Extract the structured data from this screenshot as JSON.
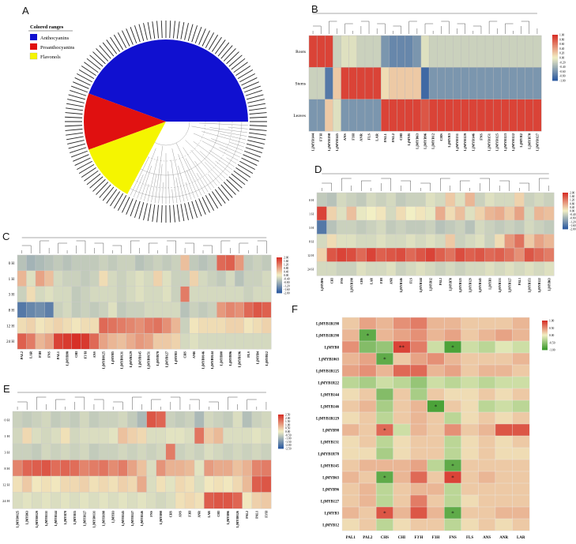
{
  "figure": {
    "panels": [
      "A",
      "B",
      "C",
      "D",
      "E",
      "F"
    ]
  },
  "panel_a": {
    "legend_title": "Colored ranges",
    "legend": [
      {
        "label": "Anthocyanins",
        "color": "#1010d0"
      },
      {
        "label": "Proanthocyanins",
        "color": "#e01010"
      },
      {
        "label": "Flavonols",
        "color": "#f5f500"
      }
    ]
  },
  "palette": {
    "heat_high": "#d73027",
    "heat_mid": "#f2efc4",
    "heat_low": "#2c5aa0",
    "corr_high": "#d73027",
    "corr_mid": "#f2efc4",
    "corr_low": "#3a9a2a"
  },
  "chart_data": [
    {
      "panel": "B",
      "type": "heatmap",
      "rows": [
        "Roots",
        "Stems",
        "Leaves"
      ],
      "columns": [
        "LjMYB144",
        "F3'H",
        "LjMYB198",
        "LjMYB145",
        "ANS",
        "F3H",
        "ANR",
        "FLS",
        "LAR",
        "PAL1",
        "PAL2",
        "CHI",
        "LjMYB",
        "LjMYB63",
        "LjMYB96",
        "LjMYB12",
        "CHS",
        "LjMYB3",
        "LjMYB131",
        "LjMYB129",
        "LjMYB146",
        "FNS",
        "LjMYB151",
        "LjMYB125",
        "LjMYB123",
        "LjMYB122",
        "LjMYB2",
        "LjMYB78",
        "LjMYB127"
      ],
      "colorbar": [
        "1.00",
        "0.80",
        "0.60",
        "0.40",
        "0.20",
        "0.00",
        "-0.20",
        "-0.40",
        "-0.60",
        "-0.80",
        "-1.00"
      ],
      "values": [
        [
          0.9,
          0.9,
          0.9,
          -0.2,
          -0.1,
          -0.1,
          -0.2,
          -0.2,
          -0.2,
          -0.6,
          -0.7,
          -0.7,
          -0.7,
          -0.6,
          -0.1,
          -0.2,
          -0.2,
          -0.2,
          -0.2,
          -0.2,
          -0.2,
          -0.2,
          -0.2,
          -0.2,
          -0.2,
          -0.2,
          -0.2,
          -0.2,
          -0.2
        ],
        [
          -0.2,
          -0.2,
          -0.8,
          0.2,
          0.9,
          0.9,
          0.9,
          0.9,
          0.9,
          0.1,
          0.2,
          0.2,
          0.2,
          0.2,
          -0.9,
          -0.6,
          -0.6,
          -0.6,
          -0.6,
          -0.6,
          -0.6,
          -0.6,
          -0.6,
          -0.6,
          -0.6,
          -0.6,
          -0.6,
          -0.6,
          -0.6
        ],
        [
          -0.6,
          -0.6,
          0.2,
          -0.1,
          -0.6,
          -0.6,
          -0.6,
          -0.6,
          -0.6,
          0.9,
          0.9,
          0.9,
          0.9,
          0.9,
          0.8,
          0.9,
          0.9,
          0.9,
          0.9,
          0.9,
          0.9,
          0.9,
          0.9,
          0.9,
          0.9,
          0.9,
          0.9,
          0.9,
          0.9
        ]
      ]
    },
    {
      "panel": "C",
      "type": "heatmap",
      "rows": [
        "0 H",
        "1 H",
        "3 H",
        "8 H",
        "12 H",
        "24 H"
      ],
      "columns": [
        "PAL2",
        "LAR",
        "F3H",
        "FNS",
        "PAL1",
        "LjMYB98",
        "CHI",
        "F3'H",
        "ANS",
        "LjMYB0125",
        "LjMYB5",
        "LjMYB0131",
        "LjMYB129",
        "LjMYB145",
        "LjMYB0151",
        "LjMYB78",
        "LjMYB127",
        "LjMYB3",
        "CHS",
        "ANR",
        "LjMYB0146",
        "LjMYB0144",
        "LjMYB00",
        "LjMYB96",
        "LjMYB196",
        "FLS",
        "LjMYB4",
        "LjMYB12"
      ],
      "colorbar": [
        "2.00",
        "1.60",
        "1.20",
        "0.80",
        "0.40",
        "0.00",
        "-0.40",
        "-0.80",
        "-1.20",
        "-1.60",
        "-2.00"
      ],
      "values": [
        [
          -0.6,
          -0.8,
          -0.7,
          -0.6,
          -0.5,
          -0.6,
          -0.5,
          -0.5,
          -0.5,
          -0.4,
          -0.5,
          -0.4,
          -0.4,
          -0.6,
          -0.5,
          -0.4,
          -0.5,
          -0.4,
          0.5,
          -0.5,
          -0.6,
          -0.5,
          1.4,
          1.5,
          0.9,
          -0.5,
          -0.4,
          -0.5
        ],
        [
          0.6,
          -0.2,
          0.8,
          0.5,
          -0.3,
          -0.4,
          -0.4,
          -0.5,
          -0.4,
          0.2,
          -0.3,
          -0.4,
          -0.3,
          -0.2,
          -0.3,
          0.3,
          -0.2,
          -0.4,
          -0.4,
          0.3,
          -0.3,
          -0.4,
          -0.5,
          -0.3,
          -0.6,
          -0.4,
          -0.4,
          -0.3
        ],
        [
          -0.4,
          0.2,
          -0.3,
          -0.2,
          -0.3,
          -0.3,
          -0.5,
          -0.4,
          -0.3,
          -0.3,
          -0.3,
          -0.4,
          -0.3,
          -0.2,
          -0.3,
          -0.3,
          -0.2,
          -0.4,
          1.2,
          -0.3,
          -0.3,
          -0.3,
          -0.3,
          -0.3,
          -0.3,
          -0.4,
          -0.3,
          -0.3
        ],
        [
          -1.6,
          -1.4,
          -1.3,
          -1.5,
          -0.4,
          -0.3,
          -0.5,
          -0.4,
          -0.5,
          -0.4,
          -0.2,
          -0.5,
          -0.4,
          -0.4,
          -0.3,
          -0.3,
          -0.3,
          -0.3,
          -0.6,
          -0.4,
          -0.5,
          -0.4,
          0.9,
          1.1,
          1.0,
          1.4,
          1.6,
          1.5
        ],
        [
          0.2,
          0.3,
          0.1,
          0.2,
          0.3,
          0.2,
          0.1,
          0.2,
          0.2,
          1.4,
          1.3,
          1.2,
          1.1,
          1.0,
          1.2,
          1.3,
          1.0,
          0.6,
          -0.4,
          0.1,
          0.2,
          0.2,
          0.2,
          0.3,
          0.3,
          0.1,
          0.2,
          0.3
        ],
        [
          1.5,
          1.2,
          0.6,
          0.8,
          1.8,
          1.9,
          2.0,
          1.9,
          1.4,
          0.8,
          0.6,
          0.5,
          0.7,
          0.9,
          0.8,
          0.4,
          0.4,
          0.3,
          -0.3,
          -0.2,
          -0.3,
          -0.3,
          -0.3,
          -0.3,
          -0.3,
          -0.3,
          -0.3,
          -0.3
        ]
      ]
    },
    {
      "panel": "D",
      "type": "heatmap",
      "rows": [
        "0 H",
        "1 H",
        "3 H",
        "8 H",
        "12 H",
        "24 H"
      ],
      "columns": [
        "LjMYB96",
        "CHI",
        "FNS",
        "LjMYB198",
        "CHS",
        "LAR",
        "F3H",
        "ANR",
        "LjMYB146",
        "FLS",
        "LjMYB144",
        "LjMYB12",
        "PAL2",
        "LjMYB78",
        "LjMYB125",
        "LjMYB129",
        "LjMYB145",
        "LjMYB3",
        "LjMYB131",
        "LjMYB127",
        "PAL1",
        "LjMYB151",
        "LjMYB122",
        "LjMYB63"
      ],
      "colorbar": [
        "2.00",
        "1.60",
        "1.20",
        "0.80",
        "0.40",
        "0.00",
        "-0.40",
        "-0.80",
        "-1.20",
        "-1.60",
        "-2.00"
      ],
      "values": [
        [
          -0.5,
          -0.6,
          -0.3,
          -0.4,
          -0.5,
          -0.3,
          -0.4,
          -0.3,
          -0.5,
          -0.4,
          -0.4,
          -0.2,
          -0.3,
          0.4,
          -0.2,
          0.6,
          -0.4,
          -0.2,
          -0.3,
          -0.3,
          0.3,
          -0.4,
          -0.3,
          -0.4
        ],
        [
          1.8,
          0.3,
          -0.2,
          0.5,
          -0.1,
          0.0,
          0.1,
          -0.3,
          0.2,
          0.0,
          0.1,
          -0.1,
          0.7,
          0.2,
          0.5,
          -0.2,
          0.3,
          0.6,
          0.7,
          0.4,
          0.8,
          -0.3,
          0.6,
          0.5
        ],
        [
          -1.6,
          -0.6,
          -0.4,
          -0.4,
          -0.5,
          -0.4,
          -0.3,
          -0.5,
          -0.4,
          -0.5,
          -0.5,
          -0.4,
          -0.6,
          -0.5,
          -0.4,
          -0.6,
          -0.3,
          -0.4,
          -0.5,
          -0.4,
          -0.5,
          -0.3,
          -0.4,
          -0.5
        ],
        [
          -0.3,
          0.2,
          -0.2,
          -0.2,
          -0.3,
          -0.3,
          -0.2,
          -0.3,
          -0.3,
          -0.2,
          -0.3,
          -0.2,
          -0.3,
          0.4,
          -0.4,
          -0.3,
          -0.2,
          -0.4,
          0.2,
          0.9,
          1.3,
          0.4,
          0.8,
          0.6
        ],
        [
          0.3,
          1.6,
          1.8,
          1.7,
          1.4,
          1.8,
          1.5,
          1.6,
          1.7,
          1.4,
          1.6,
          1.8,
          1.5,
          1.3,
          1.7,
          1.5,
          1.6,
          1.4,
          1.5,
          1.3,
          1.0,
          1.6,
          1.4,
          1.2
        ],
        [
          -0.3,
          -0.3,
          -0.4,
          -0.4,
          -0.2,
          -0.3,
          -0.3,
          -0.2,
          -0.4,
          -0.3,
          -0.2,
          -0.3,
          -0.4,
          -0.3,
          -0.4,
          -0.3,
          -0.3,
          -0.2,
          -0.3,
          -0.2,
          -0.3,
          -0.2,
          -0.3,
          -0.2
        ]
      ]
    },
    {
      "panel": "E",
      "type": "heatmap",
      "rows": [
        "0 H",
        "1 H",
        "3 H",
        "8 H",
        "12 H",
        "24 H"
      ],
      "columns": [
        "LjMYB0125",
        "LjMYB63",
        "LjMYB0129",
        "LjMYB131",
        "LjMYB144",
        "LjMYB78",
        "LjMYB15",
        "LjMYB127",
        "LjMYB0131",
        "LjMYB198",
        "LjMYB3",
        "LjMYB145",
        "LjMYB127",
        "LjMYB146",
        "FNS",
        "LjMYB98",
        "CHS",
        "ANS",
        "F3H",
        "ANR",
        "LAR",
        "CHI",
        "LjMYB96",
        "LjMYB0126",
        "PAL2",
        "PAL1",
        "F3'H"
      ],
      "colorbar": [
        "2.50",
        "2.00",
        "1.50",
        "1.00",
        "0.50",
        "0.00",
        "-0.50",
        "-1.00",
        "-1.50",
        "-2.00",
        "-2.50"
      ],
      "values": [
        [
          -0.5,
          -0.6,
          -0.5,
          -0.4,
          -0.6,
          -0.5,
          -0.6,
          -0.4,
          -0.6,
          -0.5,
          -0.5,
          -0.4,
          -0.6,
          -0.9,
          2.0,
          1.8,
          -0.5,
          -0.6,
          -0.5,
          -0.9,
          -0.4,
          -0.5,
          -0.6,
          -0.3,
          -0.8,
          -0.5,
          -0.4
        ],
        [
          -0.4,
          0.3,
          -0.3,
          -0.4,
          -0.3,
          0.2,
          -0.4,
          -0.3,
          -0.3,
          -0.3,
          -0.2,
          0.6,
          0.4,
          0.3,
          -0.3,
          -0.3,
          -0.2,
          -0.2,
          -0.3,
          1.6,
          0.5,
          0.7,
          -0.3,
          -0.3,
          -0.3,
          -0.2,
          -0.3
        ],
        [
          -0.5,
          -0.5,
          -0.6,
          -0.4,
          -0.5,
          -0.4,
          -0.5,
          -0.4,
          -0.6,
          -0.5,
          -0.5,
          -0.4,
          -0.5,
          -0.4,
          -0.5,
          -0.4,
          1.5,
          -0.5,
          -0.4,
          -0.5,
          -0.3,
          -0.4,
          -0.5,
          -0.4,
          -0.5,
          -0.4,
          -0.5
        ],
        [
          1.4,
          1.8,
          1.9,
          2.0,
          1.7,
          1.8,
          1.7,
          1.4,
          1.5,
          1.6,
          1.3,
          1.5,
          1.0,
          0.6,
          -0.3,
          1.2,
          0.8,
          0.8,
          0.7,
          -0.2,
          1.1,
          0.9,
          0.9,
          0.6,
          0.8,
          1.4,
          1.5
        ],
        [
          0.2,
          0.5,
          0.1,
          0.2,
          0.1,
          0.3,
          0.3,
          0.4,
          0.2,
          0.3,
          0.2,
          0.4,
          0.3,
          0.9,
          -0.3,
          0.2,
          -0.2,
          0.3,
          0.2,
          -0.3,
          0.1,
          0.2,
          0.1,
          0.3,
          0.7,
          1.9,
          2.0
        ],
        [
          -0.3,
          -0.2,
          -0.3,
          -0.2,
          -0.3,
          -0.2,
          -0.3,
          -0.2,
          -0.3,
          -0.2,
          -0.3,
          -0.2,
          -0.3,
          -0.2,
          -0.3,
          -0.4,
          -0.3,
          0.2,
          0.3,
          0.2,
          1.9,
          2.0,
          2.0,
          1.8,
          0.1,
          0.4,
          0.5
        ]
      ]
    },
    {
      "panel": "F",
      "type": "heatmap",
      "rows": [
        "LjMYB1R198",
        "LjMYB1R198",
        "LjMYB8",
        "LjMYB1063",
        "LjMYB1R125",
        "LjMYB1R22",
        "LjMYB144",
        "LjMYB146",
        "LjMYB1R129",
        "LjMYB98",
        "LjMYB131",
        "LjMYB1R78",
        "LjMYB145",
        "LjMYB63",
        "LjMYB96",
        "LjMYB127",
        "LjMYB3",
        "LjMYB12"
      ],
      "columns": [
        "PAL1",
        "PAL2",
        "CHS",
        "CHI",
        "F3'H",
        "F3H",
        "FNS",
        "FLS",
        "ANS",
        "ANR",
        "LAR"
      ],
      "colorbar": [
        "1.00",
        "0.50",
        "0.00",
        "-0.50",
        "-1.00"
      ],
      "values": [
        [
          0.2,
          0.4,
          0.3,
          0.5,
          0.6,
          0.3,
          0.3,
          0.2,
          0.2,
          0.2,
          0.3
        ],
        [
          0.3,
          -0.8,
          0.3,
          0.4,
          0.5,
          0.3,
          0.4,
          0.2,
          0.3,
          0.4,
          0.3
        ],
        [
          0.5,
          -0.6,
          -0.5,
          0.9,
          0.6,
          -0.2,
          -0.9,
          -0.2,
          -0.3,
          -0.1,
          -0.2
        ],
        [
          0.3,
          0.4,
          -0.8,
          0.2,
          0.4,
          0.5,
          0.3,
          0.2,
          0.2,
          0.2,
          0.3
        ],
        [
          0.4,
          0.5,
          0.3,
          0.7,
          0.7,
          0.3,
          0.4,
          0.2,
          0.3,
          0.3,
          0.2
        ],
        [
          -0.3,
          -0.4,
          -0.2,
          -0.3,
          -0.5,
          -0.2,
          -0.3,
          -0.2,
          -0.3,
          -0.2,
          -0.2
        ],
        [
          0.1,
          0.2,
          -0.6,
          0.2,
          -0.4,
          0.2,
          0.1,
          0.1,
          0.2,
          0.1,
          0.2
        ],
        [
          0.2,
          0.3,
          -0.4,
          0.2,
          0.3,
          -0.9,
          0.2,
          0.1,
          -0.3,
          -0.2,
          -0.3
        ],
        [
          0.1,
          0.2,
          -0.3,
          0.2,
          0.3,
          0.2,
          -0.3,
          0.1,
          0.2,
          0.1,
          0.2
        ],
        [
          0.3,
          0.2,
          0.7,
          -0.2,
          0.3,
          0.2,
          0.5,
          0.2,
          0.3,
          0.8,
          0.8
        ],
        [
          0.1,
          0.2,
          -0.3,
          0.1,
          0.2,
          0.2,
          -0.3,
          0.1,
          0.2,
          0.1,
          0.2
        ],
        [
          0.1,
          0.1,
          -0.4,
          0.1,
          0.2,
          0.2,
          -0.3,
          0.1,
          0.2,
          0.1,
          0.1
        ],
        [
          0.2,
          0.3,
          0.3,
          0.3,
          0.4,
          -0.3,
          -0.8,
          0.2,
          0.2,
          0.2,
          0.2
        ],
        [
          0.3,
          0.2,
          -0.8,
          0.3,
          0.7,
          0.2,
          0.9,
          0.2,
          0.3,
          0.2,
          0.2
        ],
        [
          0.2,
          0.3,
          -0.3,
          0.2,
          0.3,
          0.3,
          -0.3,
          0.2,
          0.2,
          0.2,
          0.2
        ],
        [
          0.2,
          0.3,
          -0.3,
          0.2,
          0.6,
          0.2,
          -0.3,
          0.1,
          0.2,
          0.2,
          0.2
        ],
        [
          0.3,
          0.2,
          0.8,
          0.3,
          0.8,
          0.3,
          -0.8,
          0.2,
          0.2,
          0.3,
          0.3
        ],
        [
          0.1,
          0.2,
          -0.3,
          0.1,
          0.2,
          0.2,
          -0.3,
          0.1,
          0.2,
          0.1,
          0.2
        ]
      ],
      "significance": [
        {
          "row": 1,
          "col": 1,
          "mark": "*"
        },
        {
          "row": 2,
          "col": 3,
          "mark": "**"
        },
        {
          "row": 2,
          "col": 6,
          "mark": "*"
        },
        {
          "row": 3,
          "col": 2,
          "mark": "*"
        },
        {
          "row": 7,
          "col": 5,
          "mark": "*"
        },
        {
          "row": 9,
          "col": 2,
          "mark": "*"
        },
        {
          "row": 12,
          "col": 6,
          "mark": "*"
        },
        {
          "row": 13,
          "col": 2,
          "mark": "*"
        },
        {
          "row": 13,
          "col": 6,
          "mark": "*"
        },
        {
          "row": 16,
          "col": 2,
          "mark": "*"
        },
        {
          "row": 16,
          "col": 6,
          "mark": "*"
        }
      ]
    }
  ]
}
